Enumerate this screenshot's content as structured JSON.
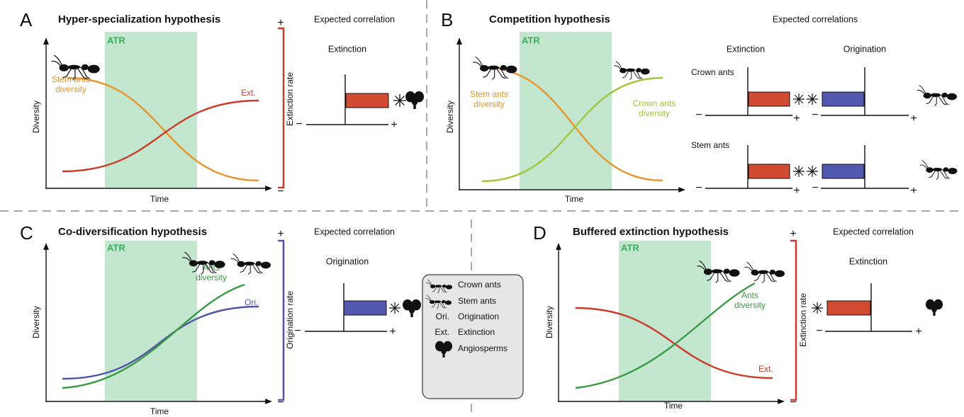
{
  "signs": {
    "plus": "+",
    "minus": "−"
  },
  "panels": [
    {
      "letter": "A",
      "title": "Hyper-specialization hypothesis",
      "atr": "ATR",
      "y_label": "Diversity",
      "x_label": "Time",
      "rate_label": "Extinction rate",
      "expected": "Expected correlation",
      "columns": [
        "Extinction"
      ],
      "curve_labels": [
        [
          "Stem ants",
          "diversity"
        ],
        [
          "Ext."
        ]
      ]
    },
    {
      "letter": "B",
      "title": "Competition hypothesis",
      "atr": "ATR",
      "y_label": "Diversity",
      "x_label": "Time",
      "expected": "Expected correlations",
      "columns": [
        "Extinction",
        "Origination"
      ],
      "rows": [
        "Crown ants",
        "Stem ants"
      ],
      "curve_labels": [
        [
          "Stem ants",
          "diversity"
        ],
        [
          "Crown ants",
          "diversity"
        ]
      ]
    },
    {
      "letter": "C",
      "title": "Co-diversification hypothesis",
      "atr": "ATR",
      "y_label": "Diversity",
      "x_label": "Time",
      "rate_label": "Origination rate",
      "expected": "Expected correlation",
      "columns": [
        "Origination"
      ],
      "curve_labels": [
        [
          "Ants",
          "diversity"
        ],
        [
          "Ori."
        ]
      ]
    },
    {
      "letter": "D",
      "title": "Buffered extinction hypothesis",
      "atr": "ATR",
      "y_label": "Diversity",
      "x_label": "Time",
      "rate_label": "Extinction rate",
      "expected": "Expected correlation",
      "columns": [
        "Extinction"
      ],
      "curve_labels": [
        [
          "Ants",
          "diversity"
        ],
        [
          "Ext."
        ]
      ]
    }
  ],
  "legend": [
    {
      "label": "Crown ants"
    },
    {
      "label": "Stem ants"
    },
    {
      "abbr": "Ori.",
      "label": "Origination"
    },
    {
      "abbr": "Ext.",
      "label": "Extinction"
    },
    {
      "label": "Angiosperms"
    }
  ]
}
